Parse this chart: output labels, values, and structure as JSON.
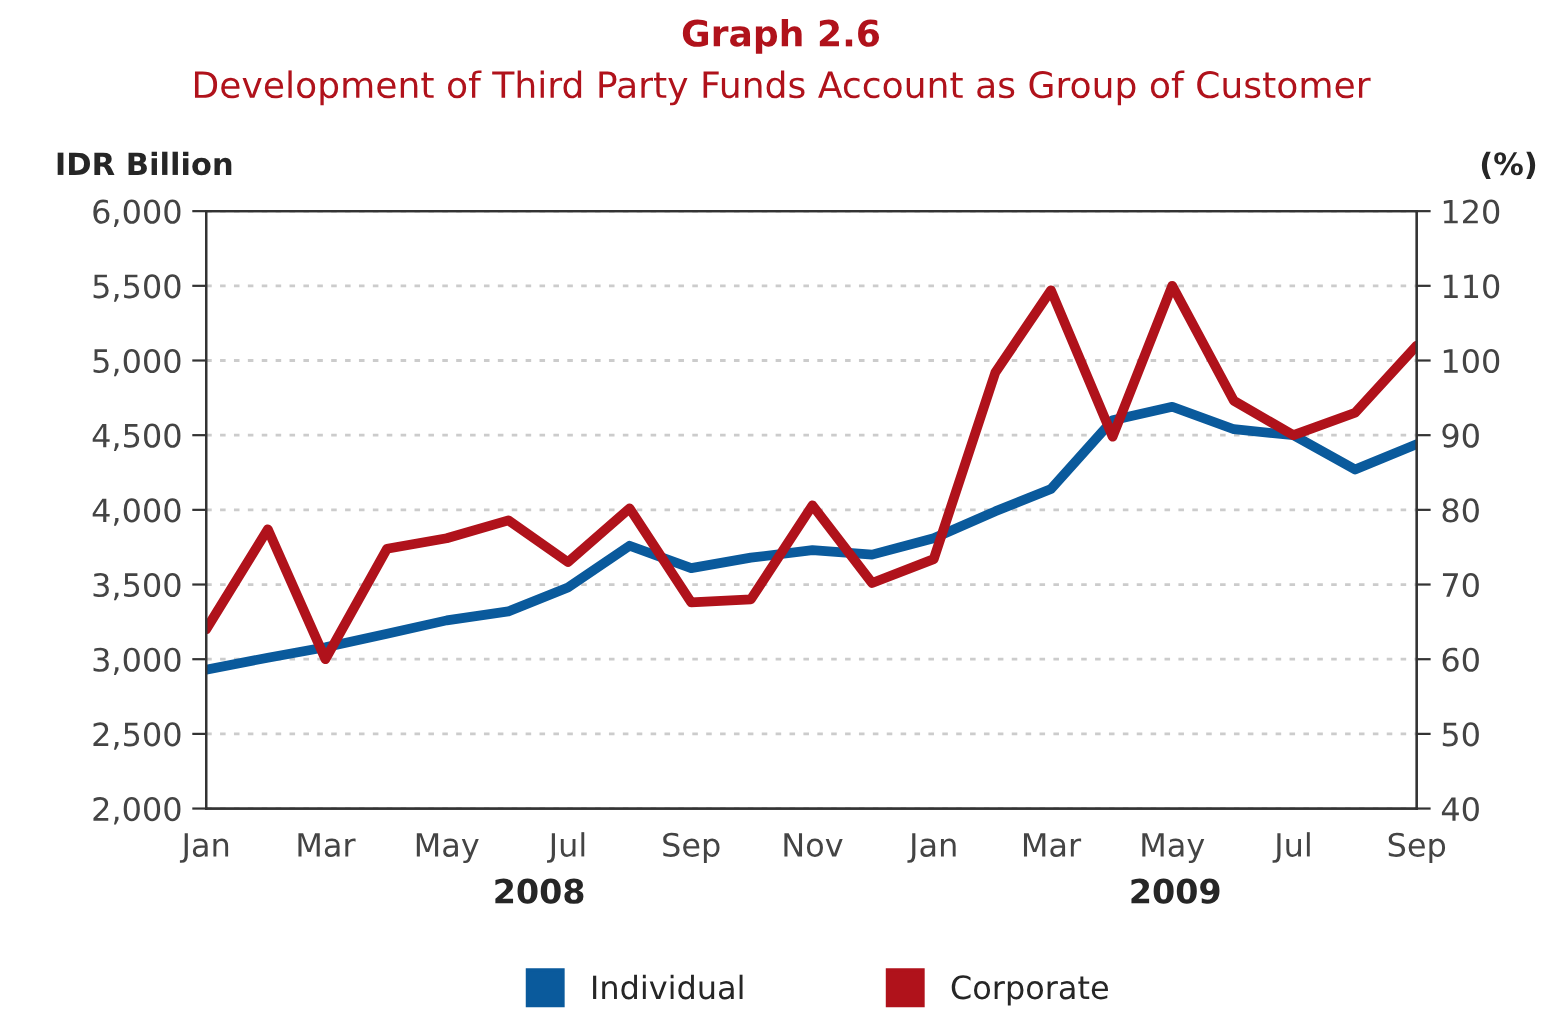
{
  "chart_data": {
    "type": "line",
    "title": "Graph 2.6",
    "subtitle": "Development of Third Party Funds Account as Group of Customer",
    "ylabel": "IDR Billion",
    "y2label": "(%)",
    "x": [
      "2008-01",
      "2008-02",
      "2008-03",
      "2008-04",
      "2008-05",
      "2008-06",
      "2008-07",
      "2008-08",
      "2008-09",
      "2008-10",
      "2008-11",
      "2008-12",
      "2009-01",
      "2009-02",
      "2009-03",
      "2009-04",
      "2009-05",
      "2009-06",
      "2009-07",
      "2009-08",
      "2009-09"
    ],
    "series": [
      {
        "name": "Individual",
        "color": "#0a5a9c",
        "values": [
          2930,
          3010,
          3080,
          3170,
          3260,
          3320,
          3480,
          3760,
          3610,
          3680,
          3730,
          3700,
          3810,
          3990,
          4140,
          4600,
          4690,
          4540,
          4500,
          4270,
          4440
        ]
      },
      {
        "name": "Corporate",
        "color": "#b0121b",
        "values": [
          3200,
          3870,
          3000,
          3740,
          3810,
          3930,
          3650,
          4010,
          3380,
          3400,
          4030,
          3510,
          3670,
          4920,
          5470,
          4490,
          5500,
          4730,
          4500,
          4650,
          5100
        ]
      }
    ],
    "xlim": [
      "2008-01",
      "2009-09"
    ],
    "xticks": [
      {
        "value": "2008-01",
        "label": "Jan"
      },
      {
        "value": "2008-03",
        "label": "Mar"
      },
      {
        "value": "2008-05",
        "label": "May"
      },
      {
        "value": "2008-07",
        "label": "Jul"
      },
      {
        "value": "2008-09",
        "label": "Sep"
      },
      {
        "value": "2008-11",
        "label": "Nov"
      },
      {
        "value": "2009-01",
        "label": "Jan"
      },
      {
        "value": "2009-03",
        "label": "Mar"
      },
      {
        "value": "2009-05",
        "label": "May"
      },
      {
        "value": "2009-07",
        "label": "Jul"
      },
      {
        "value": "2009-09",
        "label": "Sep"
      }
    ],
    "ylim": [
      2000,
      6000
    ],
    "yticks": [
      {
        "value": 2000,
        "label": "2,000"
      },
      {
        "value": 2500,
        "label": "2,500"
      },
      {
        "value": 3000,
        "label": "3,000"
      },
      {
        "value": 3500,
        "label": "3,500"
      },
      {
        "value": 4000,
        "label": "4,000"
      },
      {
        "value": 4500,
        "label": "4,500"
      },
      {
        "value": 5000,
        "label": "5,000"
      },
      {
        "value": 5500,
        "label": "5,500"
      },
      {
        "value": 6000,
        "label": "6,000"
      }
    ],
    "y2lim": [
      40,
      120
    ],
    "y2ticks": [
      40,
      50,
      60,
      70,
      80,
      90,
      100,
      110,
      120
    ],
    "annotations": [
      "2008",
      "2009"
    ],
    "grid": "y",
    "legend": "bottom",
    "marker": "none",
    "line_style": "solid"
  }
}
